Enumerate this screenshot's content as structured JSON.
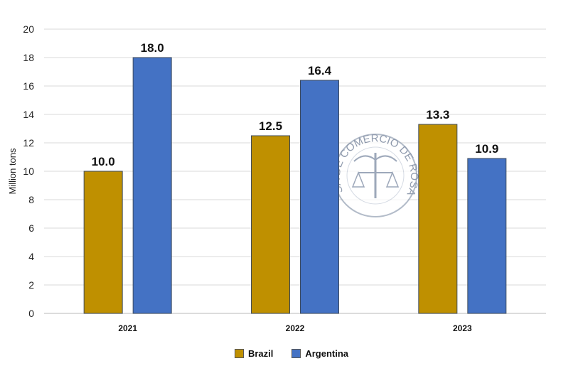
{
  "chart_data": {
    "type": "bar",
    "title": "",
    "xlabel": "",
    "ylabel": "Million tons",
    "ylim": [
      0,
      20
    ],
    "yticks": [
      0,
      2,
      4,
      6,
      8,
      10,
      12,
      14,
      16,
      18,
      20
    ],
    "grid": true,
    "legend_placement": "bottom",
    "categories": [
      "2021",
      "2022",
      "2023"
    ],
    "series": [
      {
        "name": "Brazil",
        "values": [
          10.0,
          12.5,
          13.3
        ],
        "color": "#BF9000"
      },
      {
        "name": "Argentina",
        "values": [
          18.0,
          16.4,
          10.9
        ],
        "color": "#4472C4"
      }
    ],
    "data_labels": [
      [
        "10.0",
        "12.5",
        "13.3"
      ],
      [
        "18.0",
        "16.4",
        "10.9"
      ]
    ]
  },
  "watermark": {
    "text": "BOLSA DE COMERCIO DE ROSARIO"
  }
}
